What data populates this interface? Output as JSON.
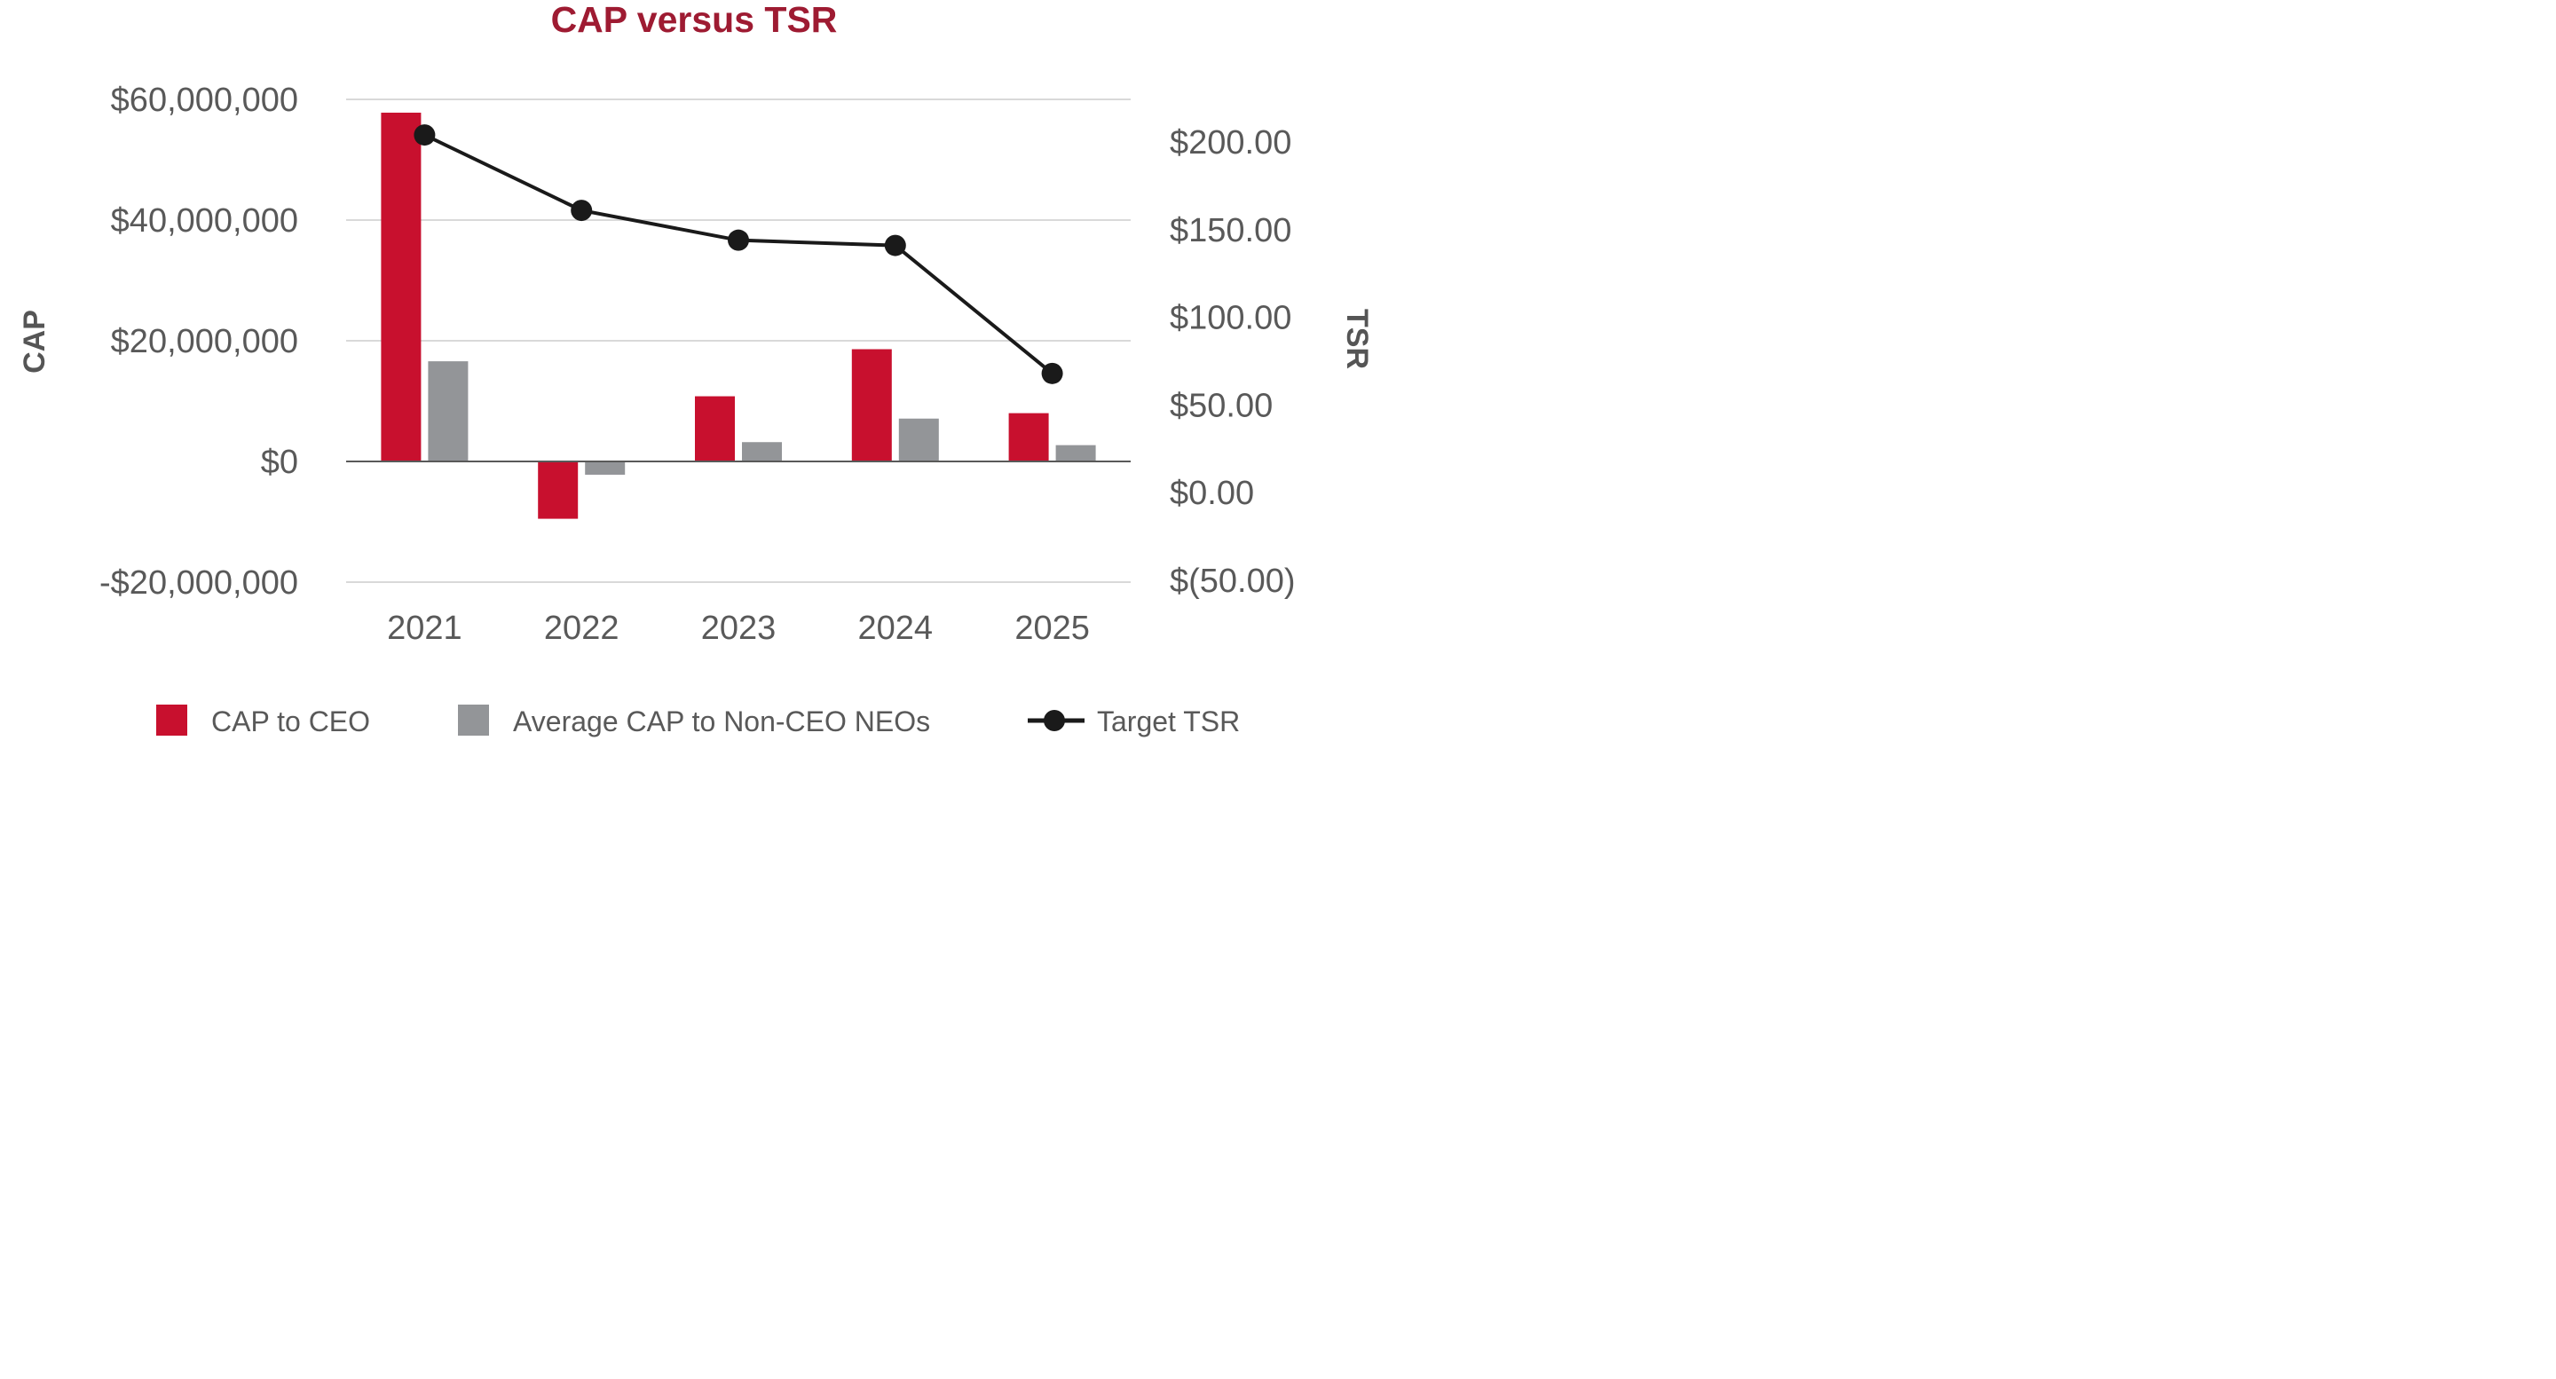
{
  "chart_data": {
    "type": "bar",
    "title": "CAP versus TSR",
    "title_color": "#9E1B32",
    "categories": [
      "2021",
      "2022",
      "2023",
      "2024",
      "2025"
    ],
    "series": [
      {
        "name": "CAP to CEO",
        "kind": "bar",
        "axis": "left",
        "color": "#C8102E",
        "values": [
          57800000,
          -9500000,
          10800000,
          18600000,
          8000000
        ]
      },
      {
        "name": "Average CAP to Non-CEO NEOs",
        "kind": "bar",
        "axis": "left",
        "color": "#939598",
        "values": [
          16600000,
          -2200000,
          3200000,
          7100000,
          2700000
        ]
      },
      {
        "name": "Target TSR",
        "kind": "line",
        "axis": "right",
        "color": "#1A1A1A",
        "values": [
          204,
          161,
          144,
          141,
          68
        ]
      }
    ],
    "y_left": {
      "label": "CAP",
      "ylim": [
        -20000000,
        60000000
      ],
      "ticks": [
        -20000000,
        0,
        20000000,
        40000000,
        60000000
      ],
      "tick_labels": [
        "-$20,000,000",
        "$0",
        "$20,000,000",
        "$40,000,000",
        "$60,000,000"
      ]
    },
    "y_right": {
      "label": "TSR",
      "ylim": [
        -50,
        200
      ],
      "ticks": [
        -50,
        0,
        50,
        100,
        150,
        200
      ],
      "tick_labels": [
        "$(50.00)",
        "$0.00",
        "$50.00",
        "$100.00",
        "$150.00",
        "$200.00"
      ]
    },
    "grid": true,
    "legend_position": "bottom"
  }
}
